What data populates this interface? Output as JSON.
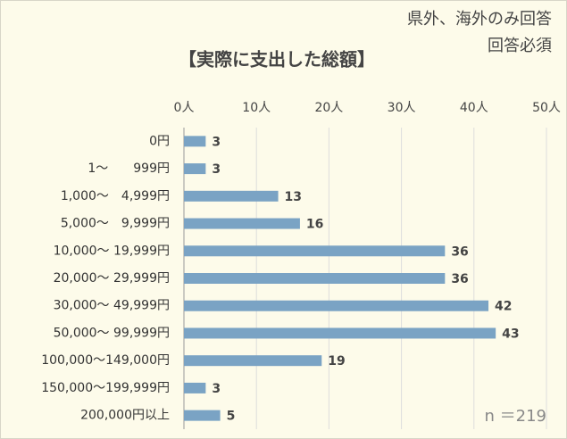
{
  "chart_data": {
    "type": "bar",
    "orientation": "horizontal",
    "title": "【実際に支出した総額】",
    "annotations": [
      "県外、海外のみ回答",
      "回答必須",
      "n ＝219"
    ],
    "categories": [
      "0円",
      "1～　　999円",
      "1,000～　4,999円",
      "5,000～　9,999円",
      "10,000～ 19,999円",
      "20,000～ 29,999円",
      "30,000～ 49,999円",
      "50,000～ 99,999円",
      "100,000～149,000円",
      "150,000～199,999円",
      "200,000円以上"
    ],
    "values": [
      3,
      3,
      13,
      16,
      36,
      36,
      42,
      43,
      19,
      3,
      5
    ],
    "color": "#7aa3c4",
    "xlim": [
      0,
      50
    ],
    "xticks": [
      {
        "value": 0,
        "label": "0人"
      },
      {
        "value": 10,
        "label": "10人"
      },
      {
        "value": 20,
        "label": "20人"
      },
      {
        "value": 30,
        "label": "30人"
      },
      {
        "value": 40,
        "label": "40人"
      },
      {
        "value": 50,
        "label": "50人"
      }
    ],
    "grid": true
  }
}
